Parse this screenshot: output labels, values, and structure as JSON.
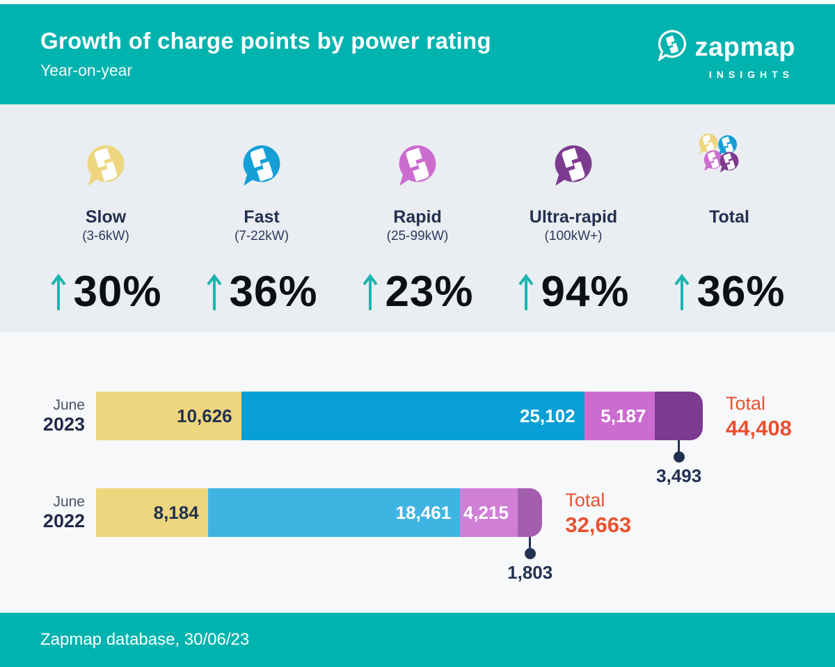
{
  "header": {
    "title": "Growth of charge points by power rating",
    "subtitle": "Year-on-year",
    "brand": {
      "name": "zapmap",
      "tagline": "INSIGHTS"
    }
  },
  "stats": {
    "arrow_color": "#1ab5b1",
    "items": [
      {
        "id": "slow",
        "label": "Slow",
        "range": "(3-6kW)",
        "percent": "30%",
        "icon": "pin",
        "color": "#eed67f"
      },
      {
        "id": "fast",
        "label": "Fast",
        "range": "(7-22kW)",
        "percent": "36%",
        "icon": "pin",
        "color": "#149fd6"
      },
      {
        "id": "rapid",
        "label": "Rapid",
        "range": "(25-99kW)",
        "percent": "23%",
        "icon": "pin",
        "color": "#cc6ccf"
      },
      {
        "id": "ultra",
        "label": "Ultra-rapid",
        "range": "(100kW+)",
        "percent": "94%",
        "icon": "pin",
        "color": "#7d3b8f"
      },
      {
        "id": "total",
        "label": "Total",
        "range": "",
        "percent": "36%",
        "icon": "cluster",
        "colors": [
          "#eed67f",
          "#149fd6",
          "#cc6ccf",
          "#7d3b8f"
        ]
      }
    ]
  },
  "chart_data": {
    "type": "bar",
    "orientation": "horizontal",
    "stacked": true,
    "categories": [
      "June 2023",
      "June 2022"
    ],
    "series": [
      {
        "name": "Slow (3-6kW)",
        "values": [
          10626,
          8184
        ]
      },
      {
        "name": "Fast (7-22kW)",
        "values": [
          25102,
          18461
        ]
      },
      {
        "name": "Rapid (25-99kW)",
        "values": [
          5187,
          4215
        ]
      },
      {
        "name": "Ultra-rapid (100kW+)",
        "values": [
          3493,
          1803
        ]
      }
    ],
    "totals": [
      44408,
      32663
    ],
    "grid": false,
    "legend_position": "none",
    "value_labels": "inside-right, last segment labelled via callout below bar"
  },
  "bars": {
    "rows": [
      {
        "month": "June",
        "year": "2023",
        "values": [
          10626,
          25102,
          5187,
          3493
        ],
        "value_labels": [
          "10,626",
          "25,102",
          "5,187",
          "3,493"
        ],
        "seg_colors": [
          "#eed67f",
          "#089fd6",
          "#cc6ccf",
          "#7d3b8f"
        ],
        "text_colors": [
          "#233150",
          "#ffffff",
          "#ffffff",
          "#ffffff"
        ],
        "total_label": "Total",
        "total_value": "44,408",
        "total_num": 44408
      },
      {
        "month": "June",
        "year": "2022",
        "values": [
          8184,
          18461,
          4215,
          1803
        ],
        "value_labels": [
          "8,184",
          "18,461",
          "4,215",
          "1,803"
        ],
        "seg_colors": [
          "#eed67f",
          "#3fb4e3",
          "#d07fd6",
          "#a35fae"
        ],
        "text_colors": [
          "#233150",
          "#ffffff",
          "#ffffff",
          "#ffffff"
        ],
        "total_label": "Total",
        "total_value": "32,663",
        "total_num": 32663
      }
    ]
  },
  "footer": {
    "source": "Zapmap database, 30/06/23"
  },
  "colors": {
    "teal": "#00b3af",
    "stats_bg": "#eaedf2",
    "chart_bg": "#f6f8fa",
    "navy": "#233150",
    "orange": "#e9512f"
  }
}
